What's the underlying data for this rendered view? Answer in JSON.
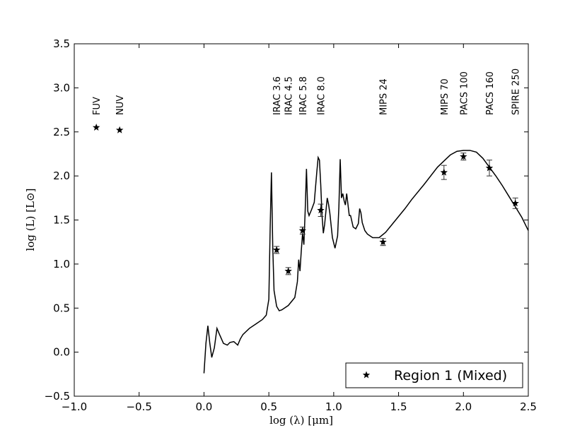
{
  "chart_data": {
    "type": "scatter",
    "xlabel": "log (λ) [μm]",
    "ylabel": "log (L) [L⊙]",
    "xlim": [
      -1.0,
      2.5
    ],
    "ylim": [
      -0.5,
      3.5
    ],
    "x_ticks": [
      -1.0,
      -0.5,
      0.0,
      0.5,
      1.0,
      1.5,
      2.0,
      2.5
    ],
    "x_tick_labels": [
      "−1.0",
      "−0.5",
      "0.0",
      "0.5",
      "1.0",
      "1.5",
      "2.0",
      "2.5"
    ],
    "y_ticks": [
      -0.5,
      0.0,
      0.5,
      1.0,
      1.5,
      2.0,
      2.5,
      3.0,
      3.5
    ],
    "y_tick_labels": [
      "−0.5",
      "0.0",
      "0.5",
      "1.0",
      "1.5",
      "2.0",
      "2.5",
      "3.0",
      "3.5"
    ],
    "grid": false,
    "legend": {
      "position": "bottom-right",
      "label": "Region 1 (Mixed)"
    },
    "series": [
      {
        "name": "Region 1 (Mixed)",
        "marker": "star",
        "color": "#000000",
        "points": [
          {
            "x": -0.83,
            "y": 2.55,
            "err": 0.0
          },
          {
            "x": -0.65,
            "y": 2.52,
            "err": 0.0
          },
          {
            "x": 0.56,
            "y": 1.16,
            "err": 0.04
          },
          {
            "x": 0.65,
            "y": 0.92,
            "err": 0.04
          },
          {
            "x": 0.76,
            "y": 1.38,
            "err": 0.04
          },
          {
            "x": 0.9,
            "y": 1.61,
            "err": 0.07
          },
          {
            "x": 1.38,
            "y": 1.25,
            "err": 0.04
          },
          {
            "x": 1.85,
            "y": 2.04,
            "err": 0.08
          },
          {
            "x": 2.0,
            "y": 2.22,
            "err": 0.04
          },
          {
            "x": 2.2,
            "y": 2.09,
            "err": 0.09
          },
          {
            "x": 2.4,
            "y": 1.69,
            "err": 0.06
          }
        ]
      },
      {
        "type": "line",
        "color": "#000000",
        "x": [
          0.0,
          0.015,
          0.03,
          0.045,
          0.06,
          0.08,
          0.1,
          0.12,
          0.15,
          0.18,
          0.2,
          0.23,
          0.26,
          0.28,
          0.3,
          0.35,
          0.4,
          0.45,
          0.48,
          0.5,
          0.51,
          0.52,
          0.53,
          0.54,
          0.56,
          0.58,
          0.6,
          0.65,
          0.7,
          0.72,
          0.73,
          0.74,
          0.75,
          0.76,
          0.77,
          0.78,
          0.79,
          0.8,
          0.81,
          0.83,
          0.85,
          0.87,
          0.88,
          0.89,
          0.9,
          0.91,
          0.92,
          0.93,
          0.95,
          0.96,
          0.97,
          0.99,
          1.01,
          1.03,
          1.04,
          1.05,
          1.06,
          1.07,
          1.08,
          1.09,
          1.1,
          1.12,
          1.13,
          1.15,
          1.17,
          1.19,
          1.2,
          1.21,
          1.22,
          1.24,
          1.26,
          1.3,
          1.35,
          1.4,
          1.45,
          1.5,
          1.55,
          1.6,
          1.7,
          1.8,
          1.9,
          1.95,
          2.0,
          2.05,
          2.1,
          2.15,
          2.2,
          2.25,
          2.3,
          2.35,
          2.4,
          2.45,
          2.5
        ],
        "y": [
          -0.24,
          0.1,
          0.3,
          0.1,
          -0.06,
          0.05,
          0.27,
          0.2,
          0.1,
          0.08,
          0.11,
          0.12,
          0.08,
          0.15,
          0.2,
          0.27,
          0.32,
          0.37,
          0.42,
          0.6,
          1.4,
          2.04,
          1.2,
          0.7,
          0.52,
          0.47,
          0.48,
          0.53,
          0.62,
          0.8,
          1.05,
          0.92,
          1.15,
          1.35,
          1.22,
          1.6,
          2.08,
          1.6,
          1.55,
          1.62,
          1.7,
          2.05,
          2.21,
          2.18,
          1.9,
          1.55,
          1.35,
          1.45,
          1.75,
          1.68,
          1.58,
          1.3,
          1.18,
          1.32,
          1.65,
          2.19,
          1.75,
          1.8,
          1.72,
          1.67,
          1.8,
          1.55,
          1.55,
          1.42,
          1.4,
          1.46,
          1.63,
          1.58,
          1.47,
          1.38,
          1.34,
          1.3,
          1.3,
          1.36,
          1.45,
          1.54,
          1.63,
          1.73,
          1.91,
          2.1,
          2.24,
          2.28,
          2.29,
          2.29,
          2.27,
          2.2,
          2.1,
          2.0,
          1.89,
          1.77,
          1.65,
          1.53,
          1.38
        ]
      }
    ],
    "annotations": [
      {
        "text": "FUV",
        "x": -0.83
      },
      {
        "text": "NUV",
        "x": -0.65
      },
      {
        "text": "IRAC 3.6",
        "x": 0.56
      },
      {
        "text": "IRAC 4.5",
        "x": 0.65
      },
      {
        "text": "IRAC 5.8",
        "x": 0.76
      },
      {
        "text": "IRAC 8.0",
        "x": 0.9
      },
      {
        "text": "MIPS 24",
        "x": 1.38
      },
      {
        "text": "MIPS 70",
        "x": 1.85
      },
      {
        "text": "PACS 100",
        "x": 2.0
      },
      {
        "text": "PACS 160",
        "x": 2.2
      },
      {
        "text": "SPIRE 250",
        "x": 2.4
      }
    ]
  }
}
